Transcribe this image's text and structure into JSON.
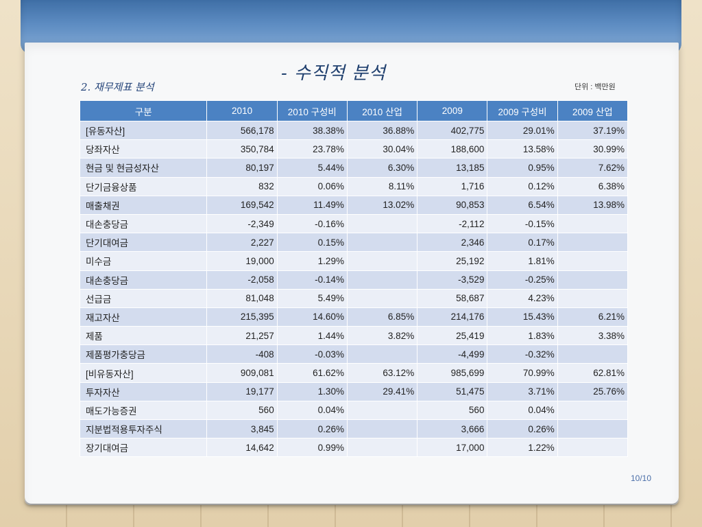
{
  "title": "- 수직적 분석",
  "subtitle": "2. 재무제표 분석",
  "unit": "단위 : 백만원",
  "page_number": "10/10",
  "table": {
    "headers": [
      "구분",
      "2010",
      "2010 구성비",
      "2010 산업",
      "2009",
      "2009 구성비",
      "2009 산업"
    ],
    "rows": [
      [
        "[유동자산]",
        "566,178",
        "38.38%",
        "36.88%",
        "402,775",
        "29.01%",
        "37.19%"
      ],
      [
        "당좌자산",
        "350,784",
        "23.78%",
        "30.04%",
        "188,600",
        "13.58%",
        "30.99%"
      ],
      [
        "현금 및 현금성자산",
        "80,197",
        "5.44%",
        "6.30%",
        "13,185",
        "0.95%",
        "7.62%"
      ],
      [
        "단기금융상품",
        "832",
        "0.06%",
        "8.11%",
        "1,716",
        "0.12%",
        "6.38%"
      ],
      [
        "매출채권",
        "169,542",
        "11.49%",
        "13.02%",
        "90,853",
        "6.54%",
        "13.98%"
      ],
      [
        "대손충당금",
        "-2,349",
        "-0.16%",
        "",
        "-2,112",
        "-0.15%",
        ""
      ],
      [
        "단기대여금",
        "2,227",
        "0.15%",
        "",
        "2,346",
        "0.17%",
        ""
      ],
      [
        "미수금",
        "19,000",
        "1.29%",
        "",
        "25,192",
        "1.81%",
        ""
      ],
      [
        "대손충당금",
        "-2,058",
        "-0.14%",
        "",
        "-3,529",
        "-0.25%",
        ""
      ],
      [
        "선급금",
        "81,048",
        "5.49%",
        "",
        "58,687",
        "4.23%",
        ""
      ],
      [
        "재고자산",
        "215,395",
        "14.60%",
        "6.85%",
        "214,176",
        "15.43%",
        "6.21%"
      ],
      [
        "제품",
        "21,257",
        "1.44%",
        "3.82%",
        "25,419",
        "1.83%",
        "3.38%"
      ],
      [
        "제품평가충당금",
        "-408",
        "-0.03%",
        "",
        "-4,499",
        "-0.32%",
        ""
      ],
      [
        "[비유동자산]",
        "909,081",
        "61.62%",
        "63.12%",
        "985,699",
        "70.99%",
        "62.81%"
      ],
      [
        "투자자산",
        "19,177",
        "1.30%",
        "29.41%",
        "51,475",
        "3.71%",
        "25.76%"
      ],
      [
        "매도가능증권",
        "560",
        "0.04%",
        "",
        "560",
        "0.04%",
        ""
      ],
      [
        "지분법적용투자주식",
        "3,845",
        "0.26%",
        "",
        "3,666",
        "0.26%",
        ""
      ],
      [
        "장기대여금",
        "14,642",
        "0.99%",
        "",
        "17,000",
        "1.22%",
        ""
      ]
    ]
  }
}
